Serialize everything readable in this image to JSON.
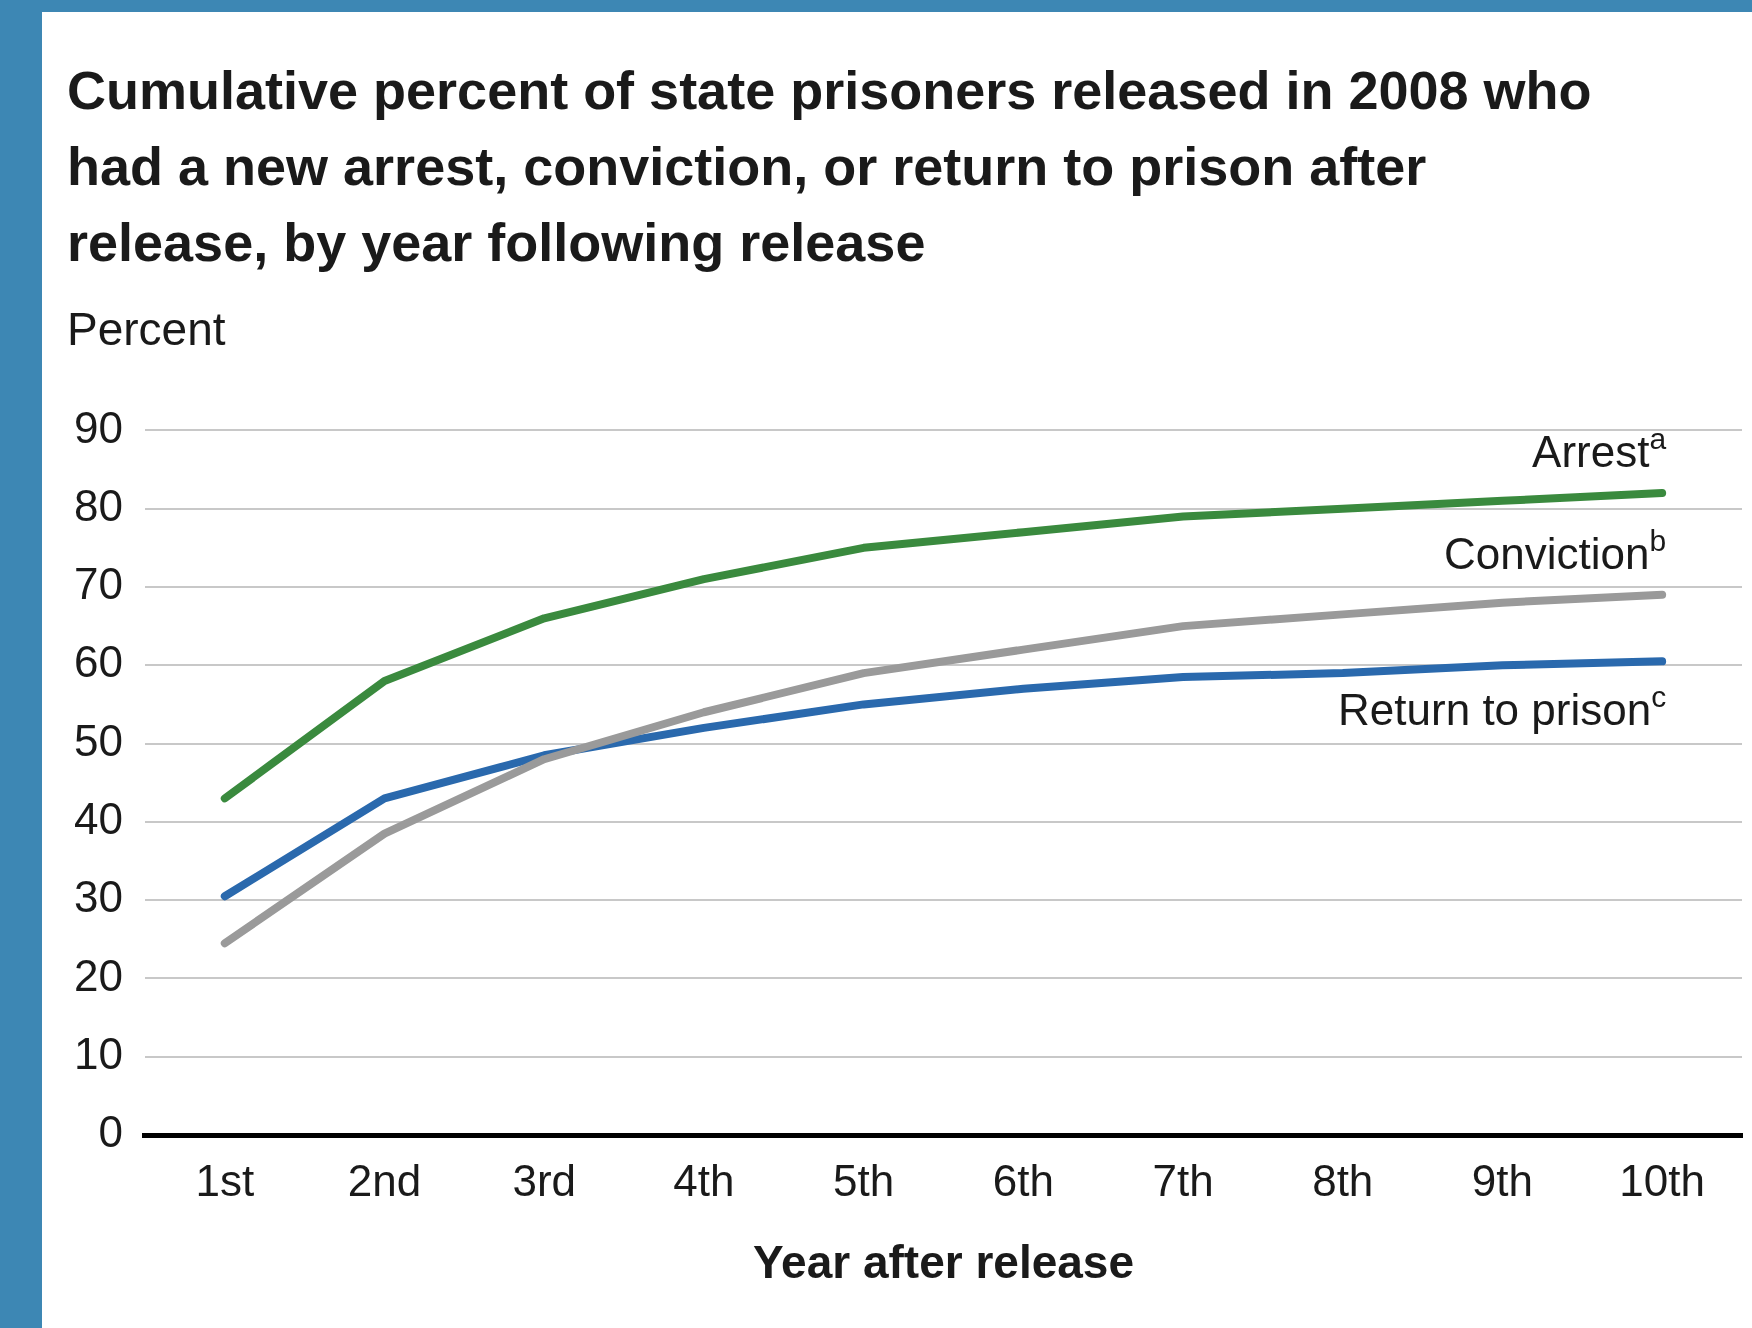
{
  "chart_data": {
    "type": "line",
    "title": "Cumulative percent of state prisoners released in 2008 who had a new arrest, conviction, or return to prison after release, by year following release",
    "ylabel": "Percent",
    "xlabel": "Year after release",
    "categories": [
      "1st",
      "2nd",
      "3rd",
      "4th",
      "5th",
      "6th",
      "7th",
      "8th",
      "9th",
      "10th"
    ],
    "series": [
      {
        "name": "Arrest$^{a}$",
        "color": "#3a8a3e",
        "values": [
          43,
          58,
          66,
          71,
          75,
          77,
          79,
          80,
          81,
          82
        ]
      },
      {
        "name": "Conviction$^{b}$",
        "color": "#9a9a9a",
        "values": [
          24.5,
          38.5,
          48,
          54,
          59,
          62,
          65,
          66.5,
          68,
          69
        ]
      },
      {
        "name": "Return to prison$^{c}$",
        "color": "#2a69ad",
        "values": [
          30.5,
          43,
          48.5,
          52,
          55,
          57,
          58.5,
          59,
          60,
          60.5
        ]
      }
    ],
    "ylim": [
      0,
      90
    ],
    "yticks": [
      0,
      10,
      20,
      30,
      40,
      50,
      60,
      70,
      80,
      90
    ],
    "grid": "y",
    "legend": false,
    "marker": "none",
    "line_style": "solid"
  }
}
